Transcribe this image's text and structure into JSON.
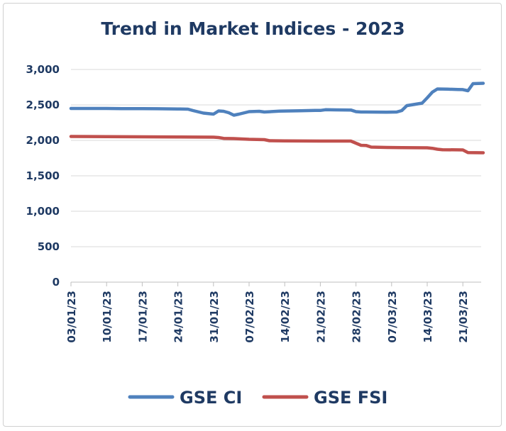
{
  "chart_data": {
    "type": "line",
    "title": "Trend in Market Indices - 2023",
    "ylim": [
      0,
      3000
    ],
    "yticks": [
      "0",
      "500",
      "1,000",
      "1,500",
      "2,000",
      "2,500",
      "3,000"
    ],
    "xtick_labels": [
      "03/01/23",
      "10/01/23",
      "17/01/23",
      "24/01/23",
      "31/01/23",
      "07/02/23",
      "14/02/23",
      "21/02/23",
      "28/02/23",
      "07/03/23",
      "14/03/23",
      "21/03/23"
    ],
    "x_range_days": [
      "2023-01-03",
      "2023-03-25"
    ],
    "legend_position": "bottom",
    "grid": "horizontal",
    "series": [
      {
        "name": "GSE CI",
        "color": "#4f81bd",
        "points": [
          [
            "2023-01-03",
            2450
          ],
          [
            "2023-01-06",
            2450
          ],
          [
            "2023-01-10",
            2450
          ],
          [
            "2023-01-13",
            2448
          ],
          [
            "2023-01-17",
            2447
          ],
          [
            "2023-01-20",
            2446
          ],
          [
            "2023-01-24",
            2443
          ],
          [
            "2023-01-26",
            2440
          ],
          [
            "2023-01-27",
            2420
          ],
          [
            "2023-01-29",
            2385
          ],
          [
            "2023-01-31",
            2370
          ],
          [
            "2023-02-01",
            2415
          ],
          [
            "2023-02-02",
            2410
          ],
          [
            "2023-02-03",
            2390
          ],
          [
            "2023-02-04",
            2355
          ],
          [
            "2023-02-05",
            2370
          ],
          [
            "2023-02-07",
            2405
          ],
          [
            "2023-02-09",
            2410
          ],
          [
            "2023-02-10",
            2400
          ],
          [
            "2023-02-13",
            2412
          ],
          [
            "2023-02-15",
            2415
          ],
          [
            "2023-02-17",
            2417
          ],
          [
            "2023-02-20",
            2422
          ],
          [
            "2023-02-21",
            2422
          ],
          [
            "2023-02-22",
            2432
          ],
          [
            "2023-02-24",
            2430
          ],
          [
            "2023-02-27",
            2428
          ],
          [
            "2023-02-28",
            2405
          ],
          [
            "2023-03-01",
            2400
          ],
          [
            "2023-03-02",
            2400
          ],
          [
            "2023-03-06",
            2398
          ],
          [
            "2023-03-08",
            2400
          ],
          [
            "2023-03-09",
            2420
          ],
          [
            "2023-03-10",
            2490
          ],
          [
            "2023-03-13",
            2525
          ],
          [
            "2023-03-14",
            2600
          ],
          [
            "2023-03-15",
            2680
          ],
          [
            "2023-03-16",
            2725
          ],
          [
            "2023-03-18",
            2722
          ],
          [
            "2023-03-20",
            2718
          ],
          [
            "2023-03-21",
            2716
          ],
          [
            "2023-03-22",
            2700
          ],
          [
            "2023-03-23",
            2800
          ],
          [
            "2023-03-25",
            2805
          ]
        ]
      },
      {
        "name": "GSE FSI",
        "color": "#c0504d",
        "points": [
          [
            "2023-01-03",
            2055
          ],
          [
            "2023-01-10",
            2053
          ],
          [
            "2023-01-17",
            2050
          ],
          [
            "2023-01-24",
            2048
          ],
          [
            "2023-01-31",
            2045
          ],
          [
            "2023-02-01",
            2040
          ],
          [
            "2023-02-02",
            2028
          ],
          [
            "2023-02-04",
            2025
          ],
          [
            "2023-02-07",
            2015
          ],
          [
            "2023-02-10",
            2010
          ],
          [
            "2023-02-11",
            1995
          ],
          [
            "2023-02-14",
            1993
          ],
          [
            "2023-02-21",
            1990
          ],
          [
            "2023-02-27",
            1990
          ],
          [
            "2023-02-28",
            1960
          ],
          [
            "2023-03-01",
            1930
          ],
          [
            "2023-03-02",
            1928
          ],
          [
            "2023-03-03",
            1905
          ],
          [
            "2023-03-06",
            1900
          ],
          [
            "2023-03-09",
            1898
          ],
          [
            "2023-03-14",
            1895
          ],
          [
            "2023-03-15",
            1888
          ],
          [
            "2023-03-16",
            1875
          ],
          [
            "2023-03-17",
            1868
          ],
          [
            "2023-03-20",
            1866
          ],
          [
            "2023-03-21",
            1865
          ],
          [
            "2023-03-22",
            1828
          ],
          [
            "2023-03-25",
            1825
          ]
        ]
      }
    ]
  }
}
